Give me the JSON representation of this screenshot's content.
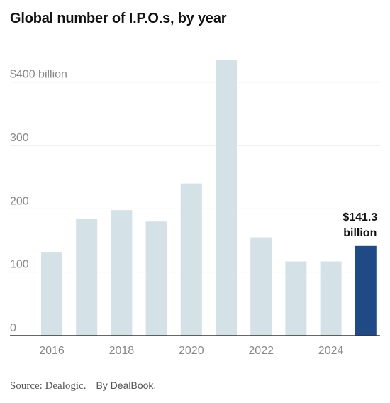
{
  "title": "Global number of I.P.O.s, by year",
  "source_text": "Source: Dealogic.",
  "byline": "By DealBook.",
  "chart_data": {
    "type": "bar",
    "title": "Global number of I.P.O.s, by year",
    "categories": [
      2016,
      2017,
      2018,
      2019,
      2020,
      2021,
      2022,
      2023,
      2024,
      2025
    ],
    "values": [
      132,
      184,
      198,
      180,
      240,
      435,
      155,
      117,
      117,
      141.3
    ],
    "x_tick_labels": [
      "2016",
      "2018",
      "2020",
      "2022",
      "2024"
    ],
    "y_ticks": [
      0,
      100,
      200,
      300,
      400
    ],
    "y_tick_labels": [
      "0",
      "100",
      "200",
      "300",
      "$400 billion"
    ],
    "ylim": [
      0,
      440
    ],
    "grid": true,
    "colors": {
      "bar": "#d4e1e7",
      "highlight": "#1f4a86",
      "grid": "#e2e2e2",
      "axis": "#333333"
    },
    "highlight_index": 9,
    "annotation": {
      "line1": "$141.3",
      "line2": "billion"
    }
  }
}
